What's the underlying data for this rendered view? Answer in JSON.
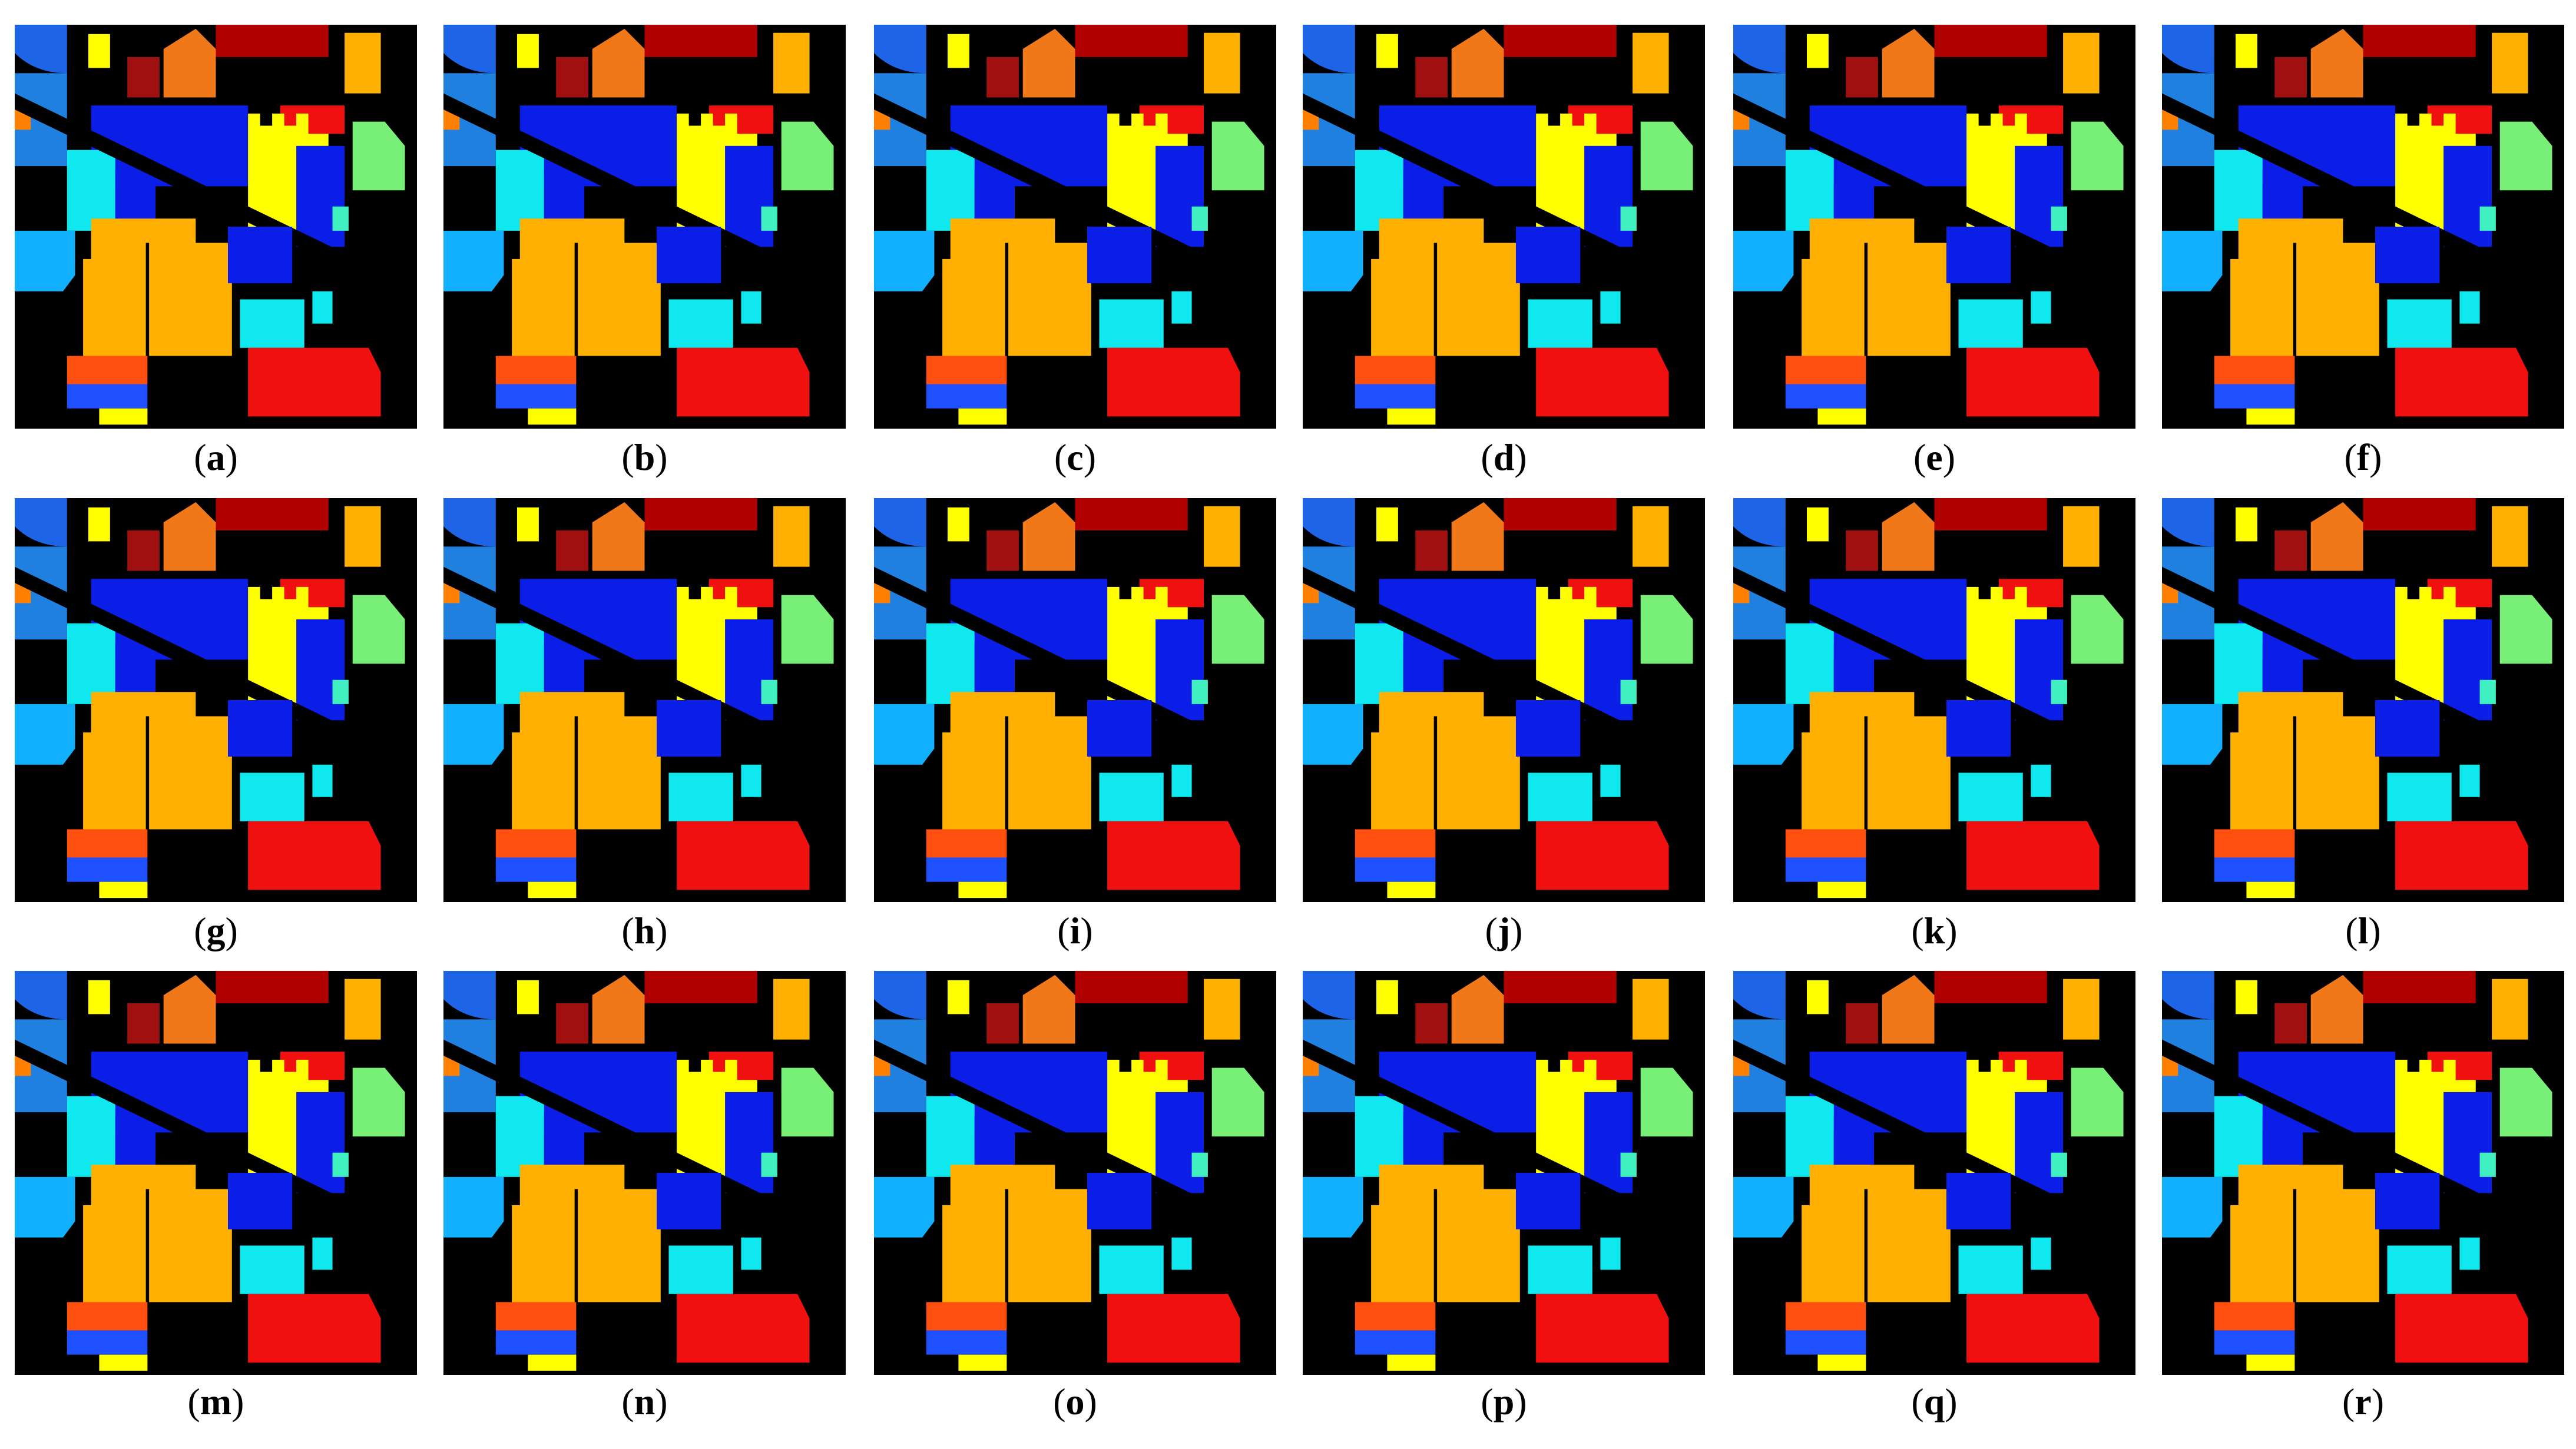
{
  "panels": [
    {
      "label": "(a)"
    },
    {
      "label": "(b)"
    },
    {
      "label": "(c)"
    },
    {
      "label": "(d)"
    },
    {
      "label": "(e)"
    },
    {
      "label": "(f)"
    },
    {
      "label": "(g)"
    },
    {
      "label": "(h)"
    },
    {
      "label": "(i)"
    },
    {
      "label": "(j)"
    },
    {
      "label": "(k)"
    },
    {
      "label": "(l)"
    },
    {
      "label": "(m)"
    },
    {
      "label": "(n)"
    },
    {
      "label": "(o)"
    },
    {
      "label": "(p)"
    },
    {
      "label": "(q)"
    },
    {
      "label": "(r)"
    }
  ]
}
